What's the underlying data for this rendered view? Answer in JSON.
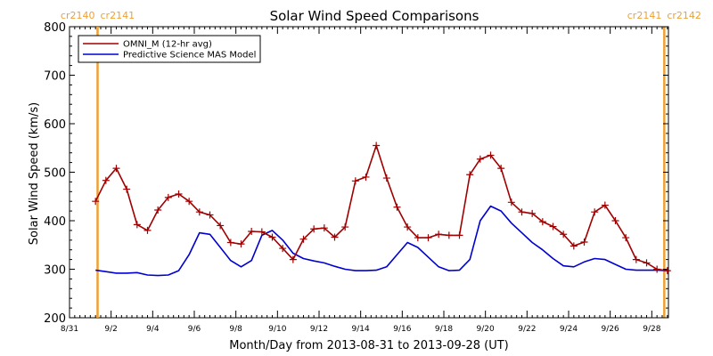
{
  "chart_data": {
    "type": "line",
    "title": "Solar Wind Speed Comparisons",
    "xlabel": "Month/Day from 2013-08-31 to 2013-09-28 (UT)",
    "ylabel": "Solar Wind Speed (km/s)",
    "ylim": [
      200,
      800
    ],
    "yticks": [
      200,
      300,
      400,
      500,
      600,
      700,
      800
    ],
    "xlim": [
      0,
      28.8
    ],
    "xtick_days": [
      0,
      2,
      4,
      6,
      8,
      10,
      12,
      14,
      16,
      18,
      20,
      22,
      24,
      26,
      28
    ],
    "xtick_labels": [
      "8/31",
      "9/2",
      "9/4",
      "9/6",
      "9/8",
      "9/10",
      "9/12",
      "9/14",
      "9/16",
      "9/18",
      "9/20",
      "9/22",
      "9/24",
      "9/26",
      "9/28"
    ],
    "carrington_markers": [
      {
        "day": 1.35,
        "left_label": "cr2140",
        "right_label": "cr2141"
      },
      {
        "day": 28.6,
        "left_label": "cr2141",
        "right_label": "cr2142"
      }
    ],
    "legend": {
      "placement": "top-left"
    },
    "series": [
      {
        "name": "OMNI_M (12-hr avg)",
        "color": "#a00000",
        "marker": "plus",
        "x": [
          1.25,
          1.75,
          2.25,
          2.75,
          3.25,
          3.75,
          4.25,
          4.75,
          5.25,
          5.75,
          6.25,
          6.75,
          7.25,
          7.75,
          8.25,
          8.75,
          9.25,
          9.75,
          10.25,
          10.75,
          11.25,
          11.75,
          12.25,
          12.75,
          13.25,
          13.75,
          14.25,
          14.75,
          15.25,
          15.75,
          16.25,
          16.75,
          17.25,
          17.75,
          18.25,
          18.75,
          19.25,
          19.75,
          20.25,
          20.75,
          21.25,
          21.75,
          22.25,
          22.75,
          23.25,
          23.75,
          24.25,
          24.75,
          25.25,
          25.75,
          26.25,
          26.75,
          27.25,
          27.75,
          28.25,
          28.75
        ],
        "y": [
          440,
          483,
          508,
          465,
          392,
          380,
          422,
          448,
          455,
          440,
          418,
          412,
          390,
          355,
          352,
          378,
          377,
          366,
          343,
          320,
          362,
          383,
          385,
          366,
          387,
          482,
          490,
          555,
          488,
          428,
          387,
          365,
          365,
          372,
          370,
          370,
          495,
          527,
          535,
          508,
          438,
          418,
          415,
          398,
          388,
          372,
          348,
          356,
          418,
          432,
          400,
          365,
          320,
          313,
          300,
          297
        ]
      },
      {
        "name": "Predictive Science MAS Model",
        "color": "#0000d0",
        "marker": "none",
        "x": [
          1.25,
          1.75,
          2.25,
          2.75,
          3.25,
          3.75,
          4.25,
          4.75,
          5.25,
          5.75,
          6.25,
          6.75,
          7.25,
          7.75,
          8.25,
          8.75,
          9.25,
          9.75,
          10.25,
          10.75,
          11.25,
          11.75,
          12.25,
          12.75,
          13.25,
          13.75,
          14.25,
          14.75,
          15.25,
          15.75,
          16.25,
          16.75,
          17.25,
          17.75,
          18.25,
          18.75,
          19.25,
          19.75,
          20.25,
          20.75,
          21.25,
          21.75,
          22.25,
          22.75,
          23.25,
          23.75,
          24.25,
          24.75,
          25.25,
          25.75,
          26.25,
          26.75,
          27.25,
          27.75,
          28.25,
          28.75
        ],
        "y": [
          298,
          295,
          292,
          292,
          293,
          288,
          287,
          288,
          297,
          330,
          375,
          372,
          345,
          318,
          305,
          318,
          370,
          380,
          360,
          333,
          322,
          317,
          313,
          306,
          300,
          297,
          297,
          298,
          305,
          330,
          355,
          345,
          325,
          305,
          297,
          298,
          320,
          400,
          430,
          420,
          395,
          375,
          355,
          340,
          322,
          307,
          305,
          315,
          322,
          320,
          310,
          300,
          298,
          298,
          298,
          297
        ]
      }
    ]
  }
}
